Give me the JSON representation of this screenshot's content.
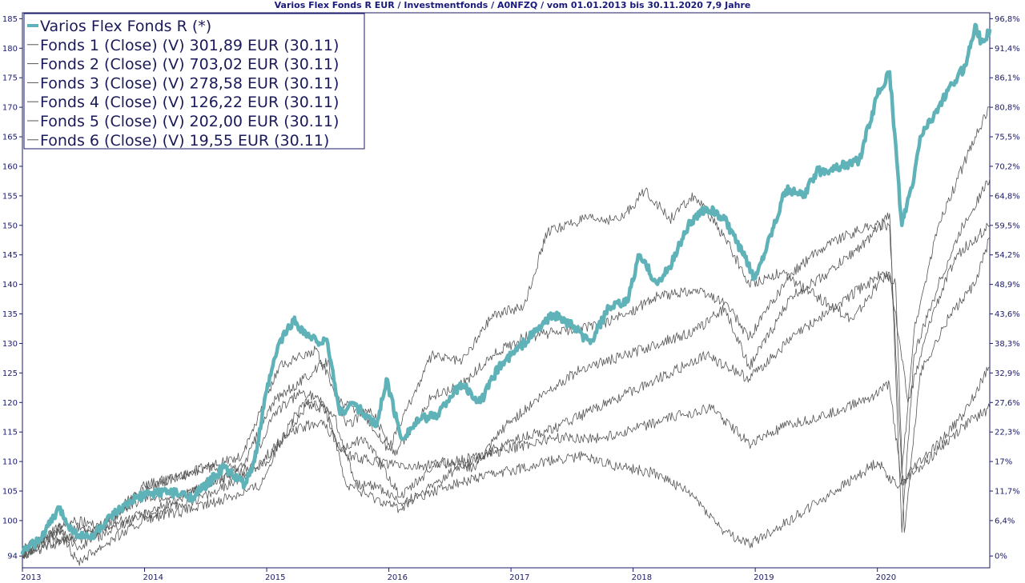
{
  "chart_data": {
    "type": "line",
    "title": "Varios Flex Fonds R EUR / Investmentfonds / A0NFZQ / vom 01.01.2013 bis 30.11.2020 7,9 Jahre",
    "xlabel": "",
    "ylabel": "",
    "xlim": [
      2013.0,
      2020.92
    ],
    "ylim": [
      92,
      186
    ],
    "x_ticks": [
      "2013",
      "2014",
      "2015",
      "2016",
      "2017",
      "2018",
      "2019",
      "2020"
    ],
    "y_ticks_left": [
      94,
      100,
      105,
      110,
      115,
      120,
      125,
      130,
      135,
      140,
      145,
      150,
      155,
      160,
      165,
      170,
      175,
      180,
      185
    ],
    "y_ticks_right": [
      {
        "label": "0%",
        "at": 94
      },
      {
        "label": "6,4%",
        "at": 100
      },
      {
        "label": "11,7%",
        "at": 105
      },
      {
        "label": "17%",
        "at": 110
      },
      {
        "label": "22,3%",
        "at": 115
      },
      {
        "label": "27,6%",
        "at": 120
      },
      {
        "label": "32,9%",
        "at": 125
      },
      {
        "label": "38,3%",
        "at": 130
      },
      {
        "label": "43,6%",
        "at": 135
      },
      {
        "label": "48,9%",
        "at": 140
      },
      {
        "label": "54,2%",
        "at": 145
      },
      {
        "label": "59,5%",
        "at": 150
      },
      {
        "label": "64,8%",
        "at": 155
      },
      {
        "label": "70,2%",
        "at": 160
      },
      {
        "label": "75,5%",
        "at": 165
      },
      {
        "label": "80,8%",
        "at": 170
      },
      {
        "label": "86,1%",
        "at": 175
      },
      {
        "label": "91,4%",
        "at": 180
      },
      {
        "label": "96,8%",
        "at": 185
      }
    ],
    "grid": false,
    "legend_position": "top-left",
    "series": [
      {
        "name": "Varios Flex Fonds R (*)",
        "color": "#5fb3b8",
        "main": true,
        "points": [
          [
            2013.0,
            94.5
          ],
          [
            2013.15,
            97
          ],
          [
            2013.3,
            102
          ],
          [
            2013.42,
            98
          ],
          [
            2013.55,
            97
          ],
          [
            2013.75,
            101
          ],
          [
            2013.95,
            104
          ],
          [
            2014.15,
            105
          ],
          [
            2014.4,
            104
          ],
          [
            2014.65,
            109
          ],
          [
            2014.82,
            106
          ],
          [
            2014.9,
            110
          ],
          [
            2015.0,
            122
          ],
          [
            2015.1,
            130
          ],
          [
            2015.22,
            134
          ],
          [
            2015.35,
            131
          ],
          [
            2015.5,
            130
          ],
          [
            2015.6,
            118
          ],
          [
            2015.7,
            120
          ],
          [
            2015.8,
            118
          ],
          [
            2015.9,
            116
          ],
          [
            2015.98,
            124
          ],
          [
            2016.1,
            114
          ],
          [
            2016.25,
            117
          ],
          [
            2016.4,
            118
          ],
          [
            2016.5,
            121
          ],
          [
            2016.6,
            123
          ],
          [
            2016.75,
            120
          ],
          [
            2016.9,
            126
          ],
          [
            2017.0,
            128
          ],
          [
            2017.15,
            131
          ],
          [
            2017.35,
            135
          ],
          [
            2017.5,
            133
          ],
          [
            2017.65,
            130
          ],
          [
            2017.8,
            136
          ],
          [
            2017.95,
            137
          ],
          [
            2018.05,
            145
          ],
          [
            2018.2,
            140
          ],
          [
            2018.3,
            143
          ],
          [
            2018.45,
            150
          ],
          [
            2018.6,
            153
          ],
          [
            2018.75,
            151
          ],
          [
            2018.9,
            145
          ],
          [
            2019.0,
            141
          ],
          [
            2019.1,
            147
          ],
          [
            2019.25,
            156
          ],
          [
            2019.4,
            155
          ],
          [
            2019.5,
            159
          ],
          [
            2019.7,
            160
          ],
          [
            2019.85,
            161
          ],
          [
            2020.0,
            172
          ],
          [
            2020.1,
            176
          ],
          [
            2020.2,
            150
          ],
          [
            2020.3,
            158
          ],
          [
            2020.35,
            165
          ],
          [
            2020.5,
            170
          ],
          [
            2020.62,
            174
          ],
          [
            2020.72,
            177
          ],
          [
            2020.8,
            184
          ],
          [
            2020.85,
            181
          ],
          [
            2020.92,
            183
          ]
        ]
      },
      {
        "name": "Fonds 1 (Close) (V) 301,89 EUR (30.11)",
        "color": "#555555",
        "main": false,
        "points": [
          [
            2013.0,
            94
          ],
          [
            2013.3,
            99
          ],
          [
            2013.45,
            95
          ],
          [
            2013.75,
            101
          ],
          [
            2014.0,
            104
          ],
          [
            2014.3,
            104
          ],
          [
            2014.6,
            107
          ],
          [
            2014.85,
            108
          ],
          [
            2015.05,
            118
          ],
          [
            2015.3,
            122
          ],
          [
            2015.45,
            120
          ],
          [
            2015.6,
            112
          ],
          [
            2015.8,
            114
          ],
          [
            2016.1,
            104
          ],
          [
            2016.4,
            110
          ],
          [
            2016.7,
            109
          ],
          [
            2016.95,
            116
          ],
          [
            2017.3,
            122
          ],
          [
            2017.6,
            126
          ],
          [
            2017.95,
            128
          ],
          [
            2018.2,
            130
          ],
          [
            2018.5,
            132
          ],
          [
            2018.75,
            136
          ],
          [
            2018.95,
            126
          ],
          [
            2019.3,
            138
          ],
          [
            2019.6,
            142
          ],
          [
            2019.95,
            148
          ],
          [
            2020.1,
            152
          ],
          [
            2020.2,
            98
          ],
          [
            2020.3,
            128
          ],
          [
            2020.5,
            140
          ],
          [
            2020.7,
            150
          ],
          [
            2020.92,
            158
          ]
        ]
      },
      {
        "name": "Fonds 2 (Close) (V) 703,02 EUR (30.11)",
        "color": "#555555",
        "main": false,
        "points": [
          [
            2013.0,
            95
          ],
          [
            2013.3,
            98
          ],
          [
            2013.45,
            93
          ],
          [
            2013.75,
            97
          ],
          [
            2014.0,
            100
          ],
          [
            2014.4,
            102
          ],
          [
            2014.7,
            104
          ],
          [
            2014.95,
            106
          ],
          [
            2015.1,
            113
          ],
          [
            2015.35,
            120
          ],
          [
            2015.55,
            118
          ],
          [
            2015.75,
            105
          ],
          [
            2016.1,
            102
          ],
          [
            2016.5,
            108
          ],
          [
            2016.95,
            113
          ],
          [
            2017.4,
            116
          ],
          [
            2017.8,
            120
          ],
          [
            2018.2,
            124
          ],
          [
            2018.6,
            128
          ],
          [
            2018.95,
            124
          ],
          [
            2019.3,
            131
          ],
          [
            2019.7,
            137
          ],
          [
            2020.05,
            142
          ],
          [
            2020.15,
            140
          ],
          [
            2020.22,
            98
          ],
          [
            2020.35,
            125
          ],
          [
            2020.6,
            135
          ],
          [
            2020.8,
            140
          ],
          [
            2020.92,
            148
          ]
        ]
      },
      {
        "name": "Fonds 3 (Close) (V) 278,58 EUR (30.11)",
        "color": "#555555",
        "main": false,
        "points": [
          [
            2013.0,
            95
          ],
          [
            2013.4,
            100
          ],
          [
            2013.7,
            99
          ],
          [
            2014.0,
            106
          ],
          [
            2014.4,
            108
          ],
          [
            2014.8,
            111
          ],
          [
            2015.1,
            126
          ],
          [
            2015.4,
            129
          ],
          [
            2015.6,
            120
          ],
          [
            2015.8,
            118
          ],
          [
            2016.0,
            112
          ],
          [
            2016.35,
            128
          ],
          [
            2016.6,
            127
          ],
          [
            2016.85,
            135
          ],
          [
            2017.1,
            136
          ],
          [
            2017.3,
            149
          ],
          [
            2017.6,
            151
          ],
          [
            2017.9,
            151
          ],
          [
            2018.1,
            156
          ],
          [
            2018.3,
            151
          ],
          [
            2018.5,
            155
          ],
          [
            2018.75,
            148
          ],
          [
            2018.95,
            140
          ],
          [
            2019.2,
            142
          ],
          [
            2019.5,
            138
          ],
          [
            2019.8,
            134
          ],
          [
            2020.0,
            140
          ],
          [
            2020.1,
            142
          ],
          [
            2020.25,
            120
          ],
          [
            2020.45,
            135
          ],
          [
            2020.65,
            145
          ],
          [
            2020.92,
            150
          ]
        ]
      },
      {
        "name": "Fonds 4 (Close) (V) 126,22 EUR (30.11)",
        "color": "#555555",
        "main": false,
        "points": [
          [
            2013.0,
            94
          ],
          [
            2013.4,
            97
          ],
          [
            2013.8,
            100
          ],
          [
            2014.2,
            102
          ],
          [
            2014.6,
            105
          ],
          [
            2015.0,
            110
          ],
          [
            2015.3,
            120
          ],
          [
            2015.5,
            119
          ],
          [
            2015.65,
            106
          ],
          [
            2015.9,
            106
          ],
          [
            2016.1,
            103
          ],
          [
            2016.5,
            106
          ],
          [
            2016.9,
            108
          ],
          [
            2017.3,
            110
          ],
          [
            2017.6,
            111
          ],
          [
            2017.9,
            109
          ],
          [
            2018.2,
            108
          ],
          [
            2018.5,
            104
          ],
          [
            2018.75,
            98
          ],
          [
            2018.95,
            96
          ],
          [
            2019.2,
            99
          ],
          [
            2019.5,
            103
          ],
          [
            2019.8,
            107
          ],
          [
            2020.0,
            110
          ],
          [
            2020.15,
            106
          ],
          [
            2020.3,
            108
          ],
          [
            2020.5,
            112
          ],
          [
            2020.7,
            116
          ],
          [
            2020.92,
            119
          ]
        ]
      },
      {
        "name": "Fonds 5 (Close) (V) 202,00 EUR (30.11)",
        "color": "#555555",
        "main": false,
        "points": [
          [
            2013.0,
            94
          ],
          [
            2013.35,
            97
          ],
          [
            2013.6,
            97
          ],
          [
            2013.9,
            100
          ],
          [
            2014.2,
            103
          ],
          [
            2014.6,
            107
          ],
          [
            2014.9,
            109
          ],
          [
            2015.2,
            115
          ],
          [
            2015.45,
            117
          ],
          [
            2015.65,
            111
          ],
          [
            2015.9,
            110
          ],
          [
            2016.2,
            109
          ],
          [
            2016.55,
            110
          ],
          [
            2016.95,
            112
          ],
          [
            2017.35,
            114
          ],
          [
            2017.75,
            114
          ],
          [
            2018.1,
            116
          ],
          [
            2018.4,
            118
          ],
          [
            2018.65,
            119
          ],
          [
            2018.95,
            113
          ],
          [
            2019.25,
            116
          ],
          [
            2019.6,
            118
          ],
          [
            2019.95,
            121
          ],
          [
            2020.1,
            123
          ],
          [
            2020.2,
            106
          ],
          [
            2020.3,
            109
          ],
          [
            2020.5,
            113
          ],
          [
            2020.7,
            118
          ],
          [
            2020.92,
            126
          ]
        ]
      },
      {
        "name": "Fonds 6 (Close) (V) 19,55 EUR (30.11)",
        "color": "#555555",
        "main": false,
        "points": [
          [
            2013.0,
            94
          ],
          [
            2013.35,
            99
          ],
          [
            2013.6,
            98
          ],
          [
            2013.9,
            104
          ],
          [
            2014.2,
            107
          ],
          [
            2014.5,
            109
          ],
          [
            2014.8,
            109
          ],
          [
            2015.05,
            120
          ],
          [
            2015.3,
            124
          ],
          [
            2015.5,
            127
          ],
          [
            2015.65,
            116
          ],
          [
            2015.85,
            119
          ],
          [
            2016.05,
            111
          ],
          [
            2016.35,
            121
          ],
          [
            2016.6,
            123
          ],
          [
            2016.85,
            128
          ],
          [
            2017.1,
            131
          ],
          [
            2017.4,
            132
          ],
          [
            2017.7,
            133
          ],
          [
            2017.95,
            135
          ],
          [
            2018.2,
            138
          ],
          [
            2018.5,
            139
          ],
          [
            2018.75,
            137
          ],
          [
            2018.95,
            131
          ],
          [
            2019.3,
            142
          ],
          [
            2019.6,
            147
          ],
          [
            2019.95,
            150
          ],
          [
            2020.1,
            150
          ],
          [
            2020.2,
            108
          ],
          [
            2020.3,
            132
          ],
          [
            2020.5,
            150
          ],
          [
            2020.7,
            160
          ],
          [
            2020.8,
            165
          ],
          [
            2020.92,
            170
          ]
        ]
      }
    ]
  }
}
